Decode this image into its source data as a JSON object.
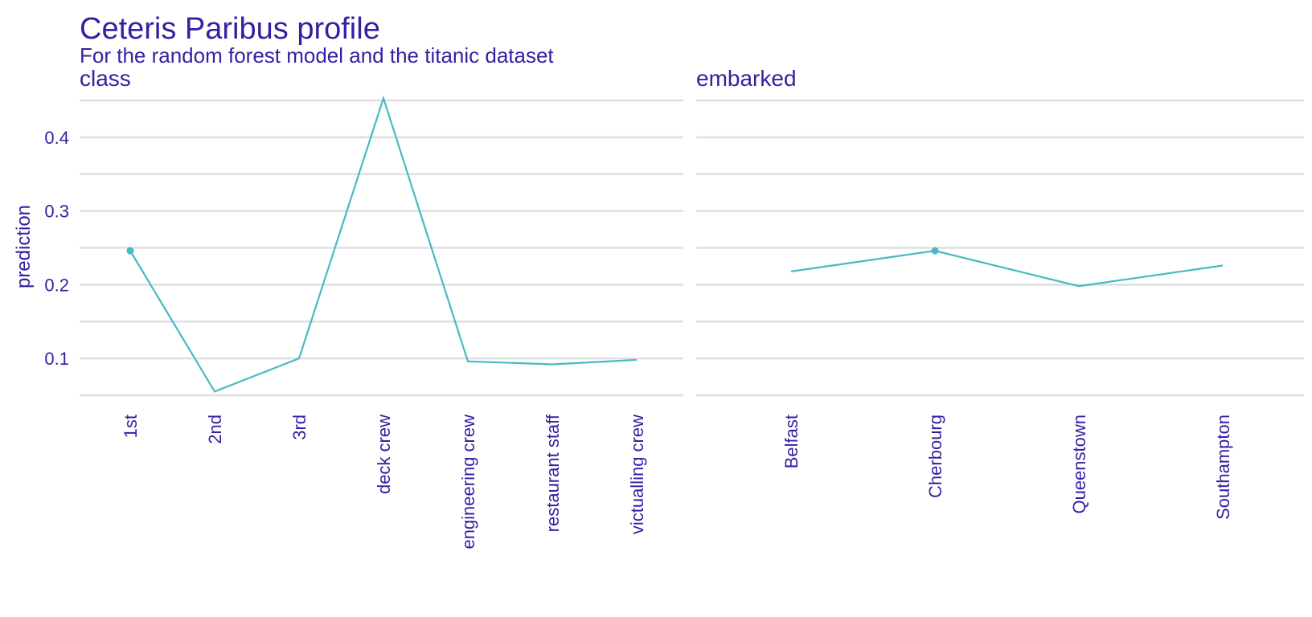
{
  "chart_data": {
    "type": "line",
    "title": "Ceteris Paribus profile",
    "subtitle": "For the random forest model and the titanic dataset",
    "ylabel": "prediction",
    "ylim": [
      0.05,
      0.45
    ],
    "yticks": [
      0.1,
      0.2,
      0.3,
      0.4
    ],
    "yticks_labels": [
      "0.1",
      "0.2",
      "0.3",
      "0.4"
    ],
    "grid": true,
    "legend": "none",
    "line_color": "#46bac2",
    "text_color": "#371ea3",
    "grid_color": "#dfdfe2",
    "panels": [
      {
        "name": "class",
        "categories": [
          "1st",
          "2nd",
          "3rd",
          "deck crew",
          "engineering crew",
          "restaurant staff",
          "victualling crew"
        ],
        "values": [
          0.246,
          0.055,
          0.1,
          0.453,
          0.096,
          0.092,
          0.098
        ],
        "observed": {
          "category": "1st",
          "value": 0.246
        }
      },
      {
        "name": "embarked",
        "categories": [
          "Belfast",
          "Cherbourg",
          "Queenstown",
          "Southampton"
        ],
        "values": [
          0.218,
          0.246,
          0.198,
          0.226
        ],
        "observed": {
          "category": "Cherbourg",
          "value": 0.246
        }
      }
    ]
  }
}
